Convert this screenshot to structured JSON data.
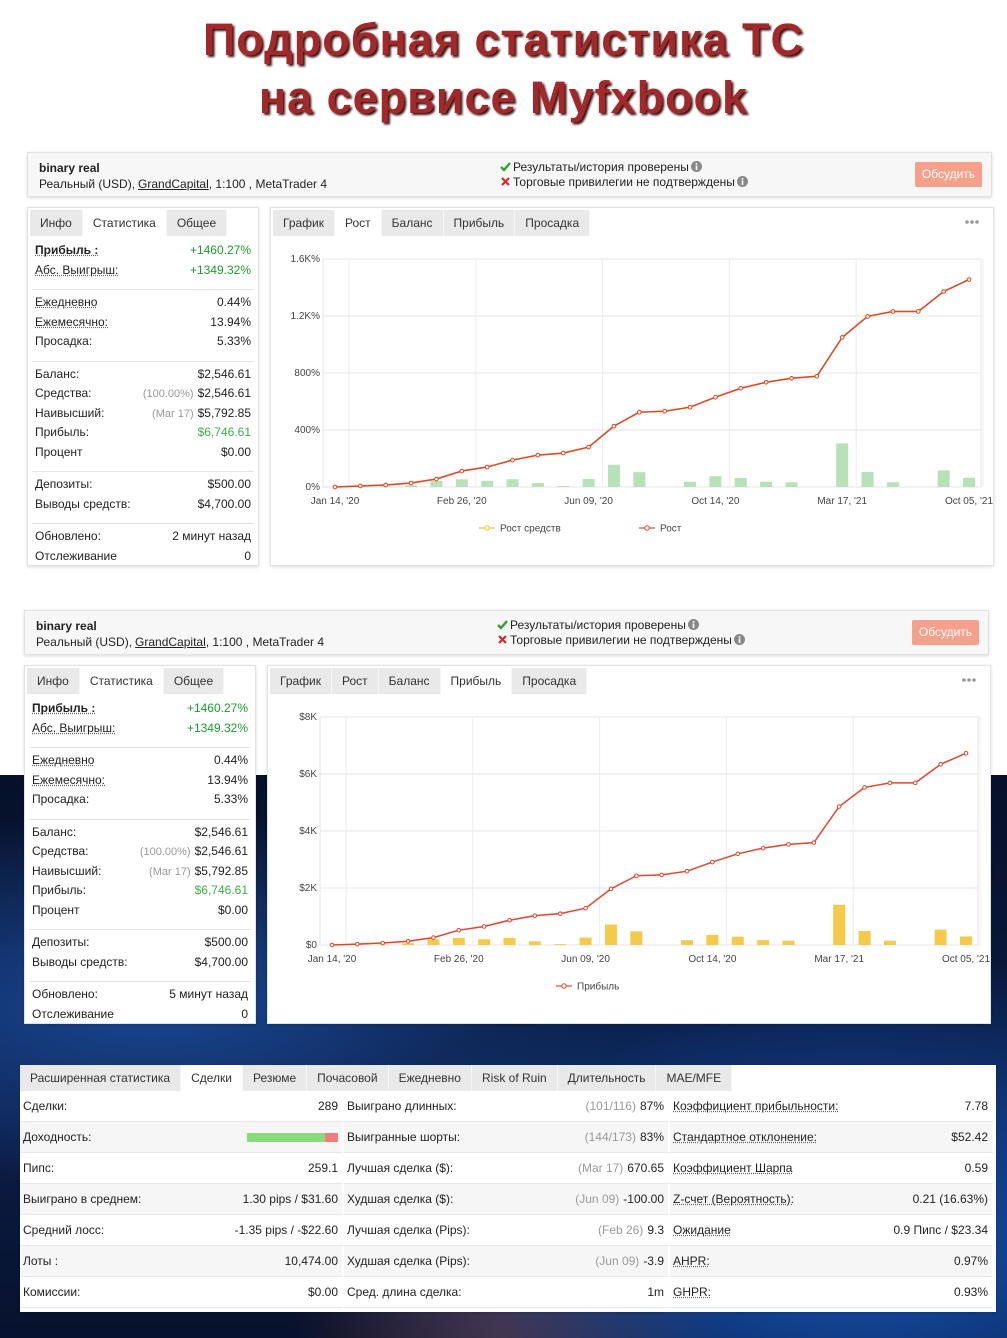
{
  "title": [
    "Подробная статистика ТС",
    "на сервисе Myfxbook"
  ],
  "panels": [
    {
      "header": {
        "account": "binary real",
        "type": "Реальный (USD),",
        "broker": "GrandCapital",
        "details": ", 1:100 , MetaTrader 4",
        "verified": "Результаты/история проверены",
        "unverified": "Торговые привилегии не подтверждены",
        "button": "Обсудить"
      },
      "stats_tabs": [
        "Инфо",
        "Статистика",
        "Общее"
      ],
      "stats_active": 1,
      "stats": [
        [
          {
            "label": "Прибыль :",
            "value": "+1460.27%",
            "color": "#1a9c2c",
            "bold": true,
            "underline": true
          },
          {
            "label": "Абс. Выигрыш:",
            "value": "+1349.32%",
            "color": "#1a9c2c",
            "underline": true
          }
        ],
        [
          {
            "label": "Ежедневно",
            "value": "0.44%",
            "underline": true
          },
          {
            "label": "Ежемесячно:",
            "value": "13.94%",
            "underline": true
          },
          {
            "label": "Просадка:",
            "value": "5.33%"
          }
        ],
        [
          {
            "label": "Баланс:",
            "value": "$2,546.61"
          },
          {
            "label": "Средства:",
            "note": "(100.00%)",
            "value": "$2,546.61"
          },
          {
            "label": "Наивысший:",
            "note": "(Mar 17)",
            "value": "$5,792.85"
          },
          {
            "label": "Прибыль:",
            "value": "$6,746.61",
            "color": "#3cb043"
          },
          {
            "label": "Процент",
            "value": "$0.00"
          }
        ],
        [
          {
            "label": "Депозиты:",
            "value": "$500.00"
          },
          {
            "label": "Выводы средств:",
            "value": "$4,700.00"
          }
        ],
        [
          {
            "label": "Обновлено:",
            "value": "2 минут назад"
          },
          {
            "label": "Отслеживание",
            "value": "0"
          }
        ]
      ],
      "chart_tabs": [
        "График",
        "Рост",
        "Баланс",
        "Прибыль",
        "Просадка"
      ],
      "chart_active": 1,
      "chart_data": {
        "type": "line",
        "categories": [
          "Jan 14, '20",
          null,
          null,
          null,
          null,
          "Feb 26, '20",
          null,
          null,
          null,
          null,
          "Jun 09, '20",
          null,
          null,
          null,
          null,
          "Oct 14, '20",
          null,
          null,
          null,
          null,
          "Mar 17, '21",
          null,
          null,
          null,
          null,
          "Oct 05, '21"
        ],
        "series": [
          {
            "name": "Рост средств",
            "color": "#f2c12e",
            "values": [
              0,
              7,
              14,
              28,
              56,
              112,
              140,
              189,
              224,
              238,
              280,
              427,
              525,
              532,
              560,
              630,
              693,
              735,
              763,
              777,
              1050,
              1197,
              1232,
              1232,
              1372,
              1456
            ]
          },
          {
            "name": "Рост",
            "color": "#e0452b",
            "values": [
              0,
              7,
              14,
              28,
              56,
              112,
              140,
              189,
              224,
              238,
              280,
              427,
              525,
              532,
              560,
              630,
              693,
              735,
              763,
              777,
              1050,
              1197,
              1232,
              1232,
              1372,
              1456
            ]
          }
        ],
        "bars": {
          "color": "#b7e2b7",
          "values": [
            0,
            0,
            5,
            13,
            43,
            54,
            43,
            54,
            28,
            7,
            56,
            156,
            104,
            0,
            37,
            76,
            63,
            37,
            33,
            0,
            306,
            106,
            33,
            0,
            117,
            65
          ]
        },
        "ylim": [
          0,
          1600
        ],
        "yticks": [
          {
            "value": 0,
            "label": "0%"
          },
          {
            "value": 400,
            "label": "400%"
          },
          {
            "value": 800,
            "label": "800%"
          },
          {
            "value": 1200,
            "label": "1.2K%"
          },
          {
            "value": 1600,
            "label": "1.6K%"
          }
        ],
        "grid": true
      }
    },
    {
      "header": {
        "account": "binary real",
        "type": "Реальный (USD),",
        "broker": "GrandCapital",
        "details": ", 1:100 , MetaTrader 4",
        "verified": "Результаты/история проверены",
        "unverified": "Торговые привилегии не подтверждены",
        "button": "Обсудить"
      },
      "stats_tabs": [
        "Инфо",
        "Статистика",
        "Общее"
      ],
      "stats_active": 1,
      "stats": [
        [
          {
            "label": "Прибыль :",
            "value": "+1460.27%",
            "color": "#1a9c2c",
            "bold": true,
            "underline": true
          },
          {
            "label": "Абс. Выигрыш:",
            "value": "+1349.32%",
            "color": "#1a9c2c",
            "underline": true
          }
        ],
        [
          {
            "label": "Ежедневно",
            "value": "0.44%",
            "underline": true
          },
          {
            "label": "Ежемесячно:",
            "value": "13.94%",
            "underline": true
          },
          {
            "label": "Просадка:",
            "value": "5.33%"
          }
        ],
        [
          {
            "label": "Баланс:",
            "value": "$2,546.61"
          },
          {
            "label": "Средства:",
            "note": "(100.00%)",
            "value": "$2,546.61"
          },
          {
            "label": "Наивысший:",
            "note": "(Mar 17)",
            "value": "$5,792.85"
          },
          {
            "label": "Прибыль:",
            "value": "$6,746.61",
            "color": "#3cb043"
          },
          {
            "label": "Процент",
            "value": "$0.00"
          }
        ],
        [
          {
            "label": "Депозиты:",
            "value": "$500.00"
          },
          {
            "label": "Выводы средств:",
            "value": "$4,700.00"
          }
        ],
        [
          {
            "label": "Обновлено:",
            "value": "5 минут назад"
          },
          {
            "label": "Отслеживание",
            "value": "0"
          }
        ]
      ],
      "chart_tabs": [
        "График",
        "Рост",
        "Баланс",
        "Прибыль",
        "Просадка"
      ],
      "chart_active": 3,
      "chart_data": {
        "type": "line",
        "categories": [
          "Jan 14, '20",
          null,
          null,
          null,
          null,
          "Feb 26, '20",
          null,
          null,
          null,
          null,
          "Jun 09, '20",
          null,
          null,
          null,
          null,
          "Oct 14, '20",
          null,
          null,
          null,
          null,
          "Mar 17, '21",
          null,
          null,
          null,
          null,
          "Oct 05, '21"
        ],
        "series": [
          {
            "name": "Прибыль",
            "color": "#e0452b",
            "values": [
              0,
              30,
              70,
              130,
              260,
              520,
              650,
              870,
              1030,
              1100,
              1290,
              1970,
              2430,
              2460,
              2590,
              2910,
              3200,
              3400,
              3530,
              3590,
              4860,
              5530,
              5690,
              5690,
              6340,
              6730
            ]
          }
        ],
        "bars": {
          "color": "#f7c948",
          "values": [
            0,
            0,
            20,
            60,
            200,
            250,
            200,
            250,
            130,
            30,
            260,
            720,
            480,
            0,
            170,
            350,
            290,
            170,
            150,
            0,
            1410,
            490,
            150,
            0,
            540,
            300
          ]
        },
        "ylim": [
          0,
          8000
        ],
        "yticks": [
          {
            "value": 0,
            "label": "$0"
          },
          {
            "value": 2000,
            "label": "$2K"
          },
          {
            "value": 4000,
            "label": "$4K"
          },
          {
            "value": 6000,
            "label": "$6K"
          },
          {
            "value": 8000,
            "label": "$8K"
          }
        ],
        "grid": true
      }
    }
  ],
  "table": {
    "tabs": [
      "Расширенная статистика",
      "Сделки",
      "Резюме",
      "Почасовой",
      "Ежедневно",
      "Risk of Ruin",
      "Длительность",
      "MAE/MFE"
    ],
    "active": 1,
    "columns": [
      [
        {
          "label": "Сделки:",
          "value": "289"
        },
        {
          "label": "Доходность:"
        },
        {
          "label": "Пипс:",
          "value": "259.1"
        },
        {
          "label": "Выиграно в среднем:",
          "value": "1.30 pips / $31.60"
        },
        {
          "label": "Средний лосс:",
          "value": "-1.35 pips / -$22.60"
        },
        {
          "label": "Лоты :",
          "value": "10,474.00"
        },
        {
          "label": "Комиссии:",
          "value": "$0.00"
        }
      ],
      [
        {
          "label": "Выиграно длинных:",
          "note": "(101/116)",
          "value": "87%"
        },
        {
          "label": "Выигранные шорты:",
          "note": "(144/173)",
          "value": "83%"
        },
        {
          "label": "Лучшая сделка ($):",
          "note": "(Mar 17)",
          "value": "670.65"
        },
        {
          "label": "Худшая сделка ($):",
          "note": "(Jun 09)",
          "value": "-100.00"
        },
        {
          "label": "Лучшая сделка (Pips):",
          "note": "(Feb 26)",
          "value": "9.3"
        },
        {
          "label": "Худшая сделка (Pips):",
          "note": "(Jun 09)",
          "value": "-3.9"
        },
        {
          "label": "Сред. длина сделка:",
          "value": "1m"
        }
      ],
      [
        {
          "label": "Коэффициент прибыльности:",
          "value": "7.78",
          "underline": true
        },
        {
          "label": "Стандартное отклонение:",
          "value": "$52.42",
          "underline": true
        },
        {
          "label": "Коэффициент Шарпа",
          "value": "0.59",
          "underline": true
        },
        {
          "label": "Z-счет (Вероятность):",
          "value": "0.21 (16.63%)",
          "underline": true
        },
        {
          "label": "Ожидание",
          "value": "0.9 Пипс / $23.34",
          "underline": true
        },
        {
          "label": "AHPR:",
          "value": "0.97%",
          "underline": true
        },
        {
          "label": "GHPR:",
          "value": "0.93%",
          "underline": true
        }
      ]
    ]
  }
}
